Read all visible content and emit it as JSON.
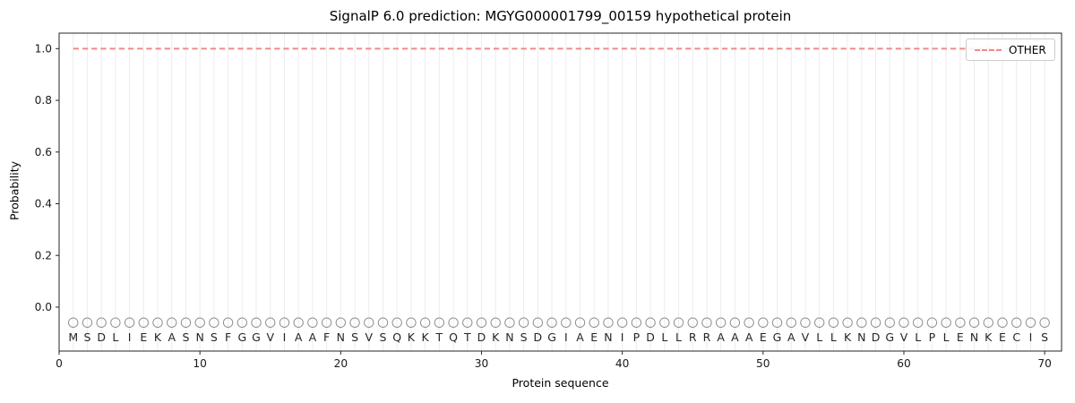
{
  "chart_data": {
    "type": "line",
    "title": "SignalP 6.0 prediction: MGYG000001799_00159 hypothetical protein",
    "xlabel": "Protein sequence",
    "ylabel": "Probability",
    "xlim": [
      0,
      71.2
    ],
    "ylim": [
      -0.17,
      1.06
    ],
    "x_ticks": [
      0,
      10,
      20,
      30,
      40,
      50,
      60,
      70
    ],
    "y_ticks": [
      "0.0",
      "0.2",
      "0.4",
      "0.6",
      "0.8",
      "1.0"
    ],
    "grid": {
      "vertical_line_per_residue": true,
      "color": "#ececec"
    },
    "legend": {
      "position": "upper right",
      "entries": [
        {
          "label": "OTHER",
          "style": "dashed",
          "color": "#f08a8a"
        }
      ]
    },
    "series": [
      {
        "name": "OTHER",
        "style": "dashed",
        "color": "#f08a8a",
        "y_constant": 1.0,
        "x_start": 1,
        "x_end": 70
      }
    ],
    "sequence": "MSDLIEKASNSFGGVIAAFNSVSQKKTQTDKNSDGIAENIPDLLRRAAAEGAVLLKNDGVLPLENKECIS",
    "sequence_markers": {
      "shape": "open-circle",
      "y": -0.06,
      "color": "#8f8f8f"
    },
    "colors": {
      "spine": "#262626",
      "tick_label": "#1a1a1a",
      "sequence_letter": "#262626",
      "background": "#ffffff"
    }
  }
}
